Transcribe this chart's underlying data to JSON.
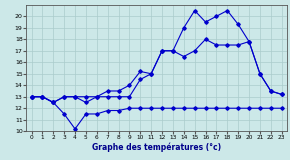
{
  "title": "Graphe des températures (°c)",
  "bg_color": "#cce8e8",
  "grid_color": "#aacccc",
  "line_color": "#0000cc",
  "xlim": [
    -0.5,
    23.5
  ],
  "ylim": [
    10,
    21
  ],
  "yticks": [
    10,
    11,
    12,
    13,
    14,
    15,
    16,
    17,
    18,
    19,
    20
  ],
  "xticks": [
    0,
    1,
    2,
    3,
    4,
    5,
    6,
    7,
    8,
    9,
    10,
    11,
    12,
    13,
    14,
    15,
    16,
    17,
    18,
    19,
    20,
    21,
    22,
    23
  ],
  "line1_x": [
    0,
    1,
    2,
    3,
    4,
    5,
    6,
    7,
    8,
    9,
    10,
    11,
    12,
    13,
    14,
    15,
    16,
    17,
    18,
    19,
    20,
    21,
    22,
    23
  ],
  "line1_y": [
    13,
    13,
    12.5,
    11.5,
    10.2,
    11.5,
    11.5,
    11.8,
    11.8,
    12,
    12,
    12,
    12,
    12,
    12,
    12,
    12,
    12,
    12,
    12,
    12,
    12,
    12,
    12
  ],
  "line2_x": [
    0,
    1,
    2,
    3,
    4,
    5,
    6,
    7,
    8,
    9,
    10,
    11,
    12,
    13,
    14,
    15,
    16,
    17,
    18,
    19,
    20,
    21,
    22,
    23
  ],
  "line2_y": [
    13,
    13,
    12.5,
    13,
    13,
    12.5,
    13,
    13.5,
    13.5,
    14,
    15.2,
    15,
    17,
    17,
    16.5,
    17,
    18,
    17.5,
    17.5,
    17.5,
    17.8,
    15,
    13.5,
    13.2
  ],
  "line3_x": [
    0,
    1,
    2,
    3,
    4,
    5,
    6,
    7,
    8,
    9,
    10,
    11,
    12,
    13,
    14,
    15,
    16,
    17,
    18,
    19,
    20,
    21,
    22,
    23
  ],
  "line3_y": [
    13,
    13,
    12.5,
    13,
    13,
    13,
    13,
    13,
    13,
    13,
    14.5,
    15,
    17,
    17,
    19,
    20.5,
    19.5,
    20,
    20.5,
    19.3,
    17.8,
    15,
    13.5,
    13.2
  ]
}
